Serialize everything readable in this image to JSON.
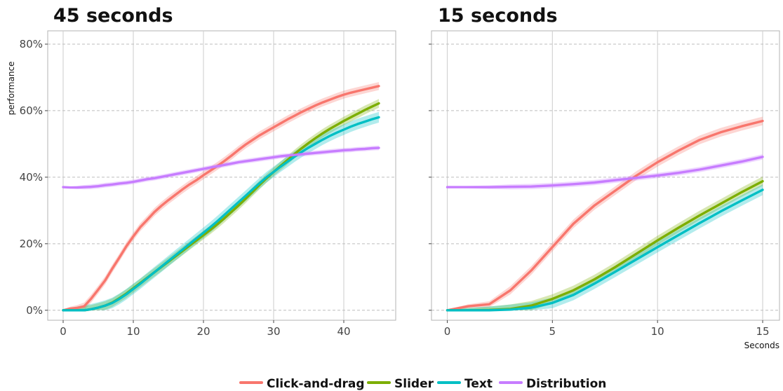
{
  "chart_data": {
    "type": "line",
    "ylabel": "performance",
    "xlabel": "Seconds",
    "ylim": [
      -0.03,
      0.84
    ],
    "y_ticks": [
      0,
      0.2,
      0.4,
      0.6,
      0.8
    ],
    "y_tick_labels": [
      "0%",
      "20%",
      "40%",
      "60%",
      "80%"
    ],
    "grid": true,
    "legend_placement": "bottom",
    "series_styles": [
      {
        "name": "Click-and-drag",
        "color": "#F8766D"
      },
      {
        "name": "Slider",
        "color": "#7CAE00"
      },
      {
        "name": "Text",
        "color": "#00BFC4"
      },
      {
        "name": "Distribution",
        "color": "#C77CFF"
      }
    ],
    "panels": [
      {
        "title": "45 seconds",
        "xlim": [
          -2.2,
          47.4
        ],
        "x_ticks": [
          0,
          10,
          20,
          30,
          40
        ],
        "x_tick_labels": [
          "0",
          "10",
          "20",
          "30",
          "40"
        ],
        "x": [
          0,
          1,
          2,
          3,
          4,
          5,
          6,
          7,
          8,
          9,
          10,
          11,
          12,
          13,
          14,
          15,
          16,
          17,
          18,
          19,
          20,
          21,
          22,
          23,
          24,
          25,
          26,
          27,
          28,
          29,
          30,
          31,
          32,
          33,
          34,
          35,
          36,
          37,
          38,
          39,
          40,
          41,
          42,
          43,
          44,
          45
        ],
        "series": [
          {
            "name": "Click-and-drag",
            "values": [
              0,
              0.005,
              0.007,
              0.012,
              0.035,
              0.062,
              0.09,
              0.125,
              0.158,
              0.192,
              0.222,
              0.25,
              0.272,
              0.295,
              0.314,
              0.331,
              0.347,
              0.363,
              0.378,
              0.391,
              0.406,
              0.42,
              0.434,
              0.449,
              0.465,
              0.482,
              0.498,
              0.512,
              0.526,
              0.538,
              0.55,
              0.562,
              0.574,
              0.585,
              0.596,
              0.606,
              0.616,
              0.625,
              0.633,
              0.641,
              0.648,
              0.654,
              0.659,
              0.664,
              0.669,
              0.674
            ],
            "band": 0.012
          },
          {
            "name": "Slider",
            "values": [
              0,
              0,
              0,
              0,
              0.003,
              0.008,
              0.014,
              0.023,
              0.036,
              0.05,
              0.066,
              0.082,
              0.098,
              0.114,
              0.13,
              0.146,
              0.162,
              0.178,
              0.194,
              0.21,
              0.226,
              0.242,
              0.259,
              0.277,
              0.296,
              0.315,
              0.335,
              0.356,
              0.377,
              0.397,
              0.416,
              0.434,
              0.452,
              0.47,
              0.487,
              0.503,
              0.518,
              0.532,
              0.545,
              0.557,
              0.569,
              0.58,
              0.591,
              0.602,
              0.612,
              0.622
            ],
            "band": 0.013
          },
          {
            "name": "Text",
            "values": [
              0,
              0,
              0,
              0,
              0.003,
              0.008,
              0.014,
              0.022,
              0.034,
              0.048,
              0.064,
              0.08,
              0.097,
              0.114,
              0.131,
              0.148,
              0.165,
              0.182,
              0.199,
              0.216,
              0.233,
              0.25,
              0.268,
              0.287,
              0.306,
              0.325,
              0.344,
              0.363,
              0.382,
              0.4,
              0.416,
              0.432,
              0.447,
              0.462,
              0.476,
              0.489,
              0.501,
              0.513,
              0.524,
              0.534,
              0.543,
              0.552,
              0.56,
              0.567,
              0.574,
              0.58
            ],
            "band": 0.016
          },
          {
            "name": "Distribution",
            "values": [
              0.37,
              0.369,
              0.369,
              0.37,
              0.371,
              0.373,
              0.376,
              0.378,
              0.381,
              0.383,
              0.386,
              0.39,
              0.394,
              0.397,
              0.401,
              0.405,
              0.409,
              0.413,
              0.417,
              0.421,
              0.425,
              0.429,
              0.433,
              0.437,
              0.441,
              0.445,
              0.448,
              0.451,
              0.454,
              0.457,
              0.46,
              0.463,
              0.465,
              0.467,
              0.469,
              0.471,
              0.473,
              0.475,
              0.477,
              0.479,
              0.481,
              0.482,
              0.484,
              0.485,
              0.487,
              0.488
            ],
            "band": 0.007
          }
        ]
      },
      {
        "title": "15 seconds",
        "xlim": [
          -0.75,
          15.8
        ],
        "x_ticks": [
          0,
          5,
          10,
          15
        ],
        "x_tick_labels": [
          "0",
          "5",
          "10",
          "15"
        ],
        "x": [
          0,
          1,
          2,
          3,
          4,
          5,
          6,
          7,
          8,
          9,
          10,
          11,
          12,
          13,
          14,
          15
        ],
        "series": [
          {
            "name": "Click-and-drag",
            "values": [
              0,
              0.012,
              0.018,
              0.06,
              0.12,
              0.19,
              0.26,
              0.315,
              0.36,
              0.405,
              0.445,
              0.48,
              0.512,
              0.535,
              0.553,
              0.569
            ],
            "band": 0.013
          },
          {
            "name": "Slider",
            "values": [
              0,
              0,
              0.001,
              0.004,
              0.014,
              0.034,
              0.06,
              0.093,
              0.13,
              0.17,
              0.21,
              0.248,
              0.285,
              0.32,
              0.355,
              0.388
            ],
            "band": 0.014
          },
          {
            "name": "Text",
            "values": [
              0,
              0,
              0,
              0.002,
              0.008,
              0.022,
              0.046,
              0.08,
              0.116,
              0.153,
              0.19,
              0.226,
              0.262,
              0.297,
              0.33,
              0.362
            ],
            "band": 0.016
          },
          {
            "name": "Distribution",
            "values": [
              0.37,
              0.37,
              0.37,
              0.371,
              0.372,
              0.375,
              0.379,
              0.384,
              0.391,
              0.398,
              0.405,
              0.413,
              0.423,
              0.435,
              0.447,
              0.461
            ],
            "band": 0.008
          }
        ]
      }
    ],
    "legend": [
      "Click-and-drag",
      "Slider",
      "Text",
      "Distribution"
    ]
  }
}
